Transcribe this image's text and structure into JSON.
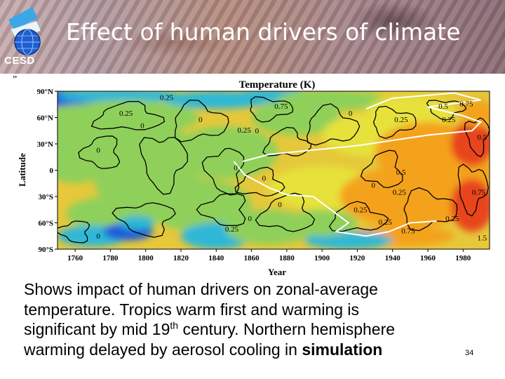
{
  "header": {
    "logo_text": "CESD",
    "title": "Effect of human drivers of climate"
  },
  "quote_mark": "”",
  "chart_data": {
    "type": "heatmap",
    "title": "Temperature (K)",
    "xlabel": "Year",
    "ylabel": "Latitude",
    "x_ticks": [
      "1760",
      "1780",
      "1800",
      "1820",
      "1840",
      "1860",
      "1880",
      "1900",
      "1920",
      "1940",
      "1960",
      "1980"
    ],
    "y_ticks": [
      "90°N",
      "60°N",
      "30°N",
      "0",
      "30°S",
      "60°S",
      "90°S"
    ],
    "xlim": [
      1750,
      1995
    ],
    "ylim": [
      -90,
      90
    ],
    "contour_labels": [
      {
        "text": "0.25",
        "x": 1785,
        "y": 62
      },
      {
        "text": "0",
        "x": 1797,
        "y": 48
      },
      {
        "text": "0.25",
        "x": 1808,
        "y": 80
      },
      {
        "text": "0",
        "x": 1830,
        "y": 55
      },
      {
        "text": "0",
        "x": 1862,
        "y": 42
      },
      {
        "text": "0.75",
        "x": 1873,
        "y": 70
      },
      {
        "text": "0.25",
        "x": 1852,
        "y": 43
      },
      {
        "text": "0",
        "x": 1915,
        "y": 62
      },
      {
        "text": "0.25",
        "x": 1941,
        "y": 55
      },
      {
        "text": "0.5",
        "x": 1966,
        "y": 70
      },
      {
        "text": "0.75",
        "x": 1978,
        "y": 73
      },
      {
        "text": "0.25",
        "x": 1968,
        "y": 55
      },
      {
        "text": "0.5",
        "x": 1988,
        "y": 35
      },
      {
        "text": "0",
        "x": 1772,
        "y": 20
      },
      {
        "text": "0",
        "x": 1850,
        "y": 0
      },
      {
        "text": "0",
        "x": 1866,
        "y": -12
      },
      {
        "text": "0.5",
        "x": 1942,
        "y": -5
      },
      {
        "text": "0",
        "x": 1928,
        "y": -20
      },
      {
        "text": "0.25",
        "x": 1940,
        "y": -28
      },
      {
        "text": "0.75",
        "x": 1985,
        "y": -28
      },
      {
        "text": "0",
        "x": 1875,
        "y": -42
      },
      {
        "text": "0.25",
        "x": 1918,
        "y": -48
      },
      {
        "text": "0",
        "x": 1858,
        "y": -58
      },
      {
        "text": "0.25",
        "x": 1932,
        "y": -62
      },
      {
        "text": "0.25",
        "x": 1845,
        "y": -70
      },
      {
        "text": "0",
        "x": 1772,
        "y": -78
      },
      {
        "text": "0.75",
        "x": 1945,
        "y": -72
      },
      {
        "text": "0.25",
        "x": 1970,
        "y": -58
      },
      {
        "text": "1.5",
        "x": 1988,
        "y": -80
      }
    ],
    "colors": {
      "cold": "#1a5adc",
      "cool": "#2fb7d6",
      "neutral": "#8fd05a",
      "mild": "#e6e23a",
      "warm": "#f4a21c",
      "hot": "#e8441c"
    }
  },
  "caption": {
    "line1": "Shows impact of human drivers on zonal-average",
    "line2": "temperature. Tropics warm first and warming is",
    "line3_pre": "significant by mid 19",
    "line3_sup": "th",
    "line3_post": " century. Northern hemisphere",
    "line4_pre": "warming delayed by aerosol cooling in ",
    "line4_bold": "simulation"
  },
  "slide_number": "34"
}
